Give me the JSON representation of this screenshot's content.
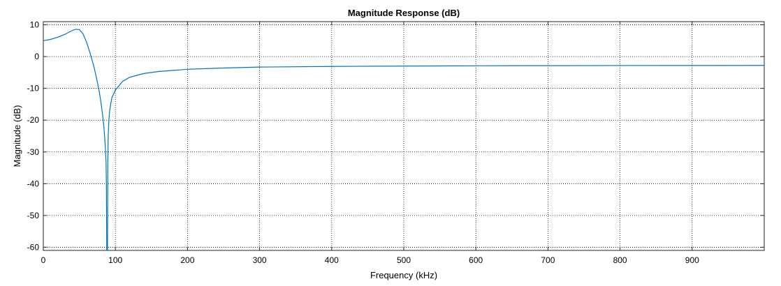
{
  "chart_data": {
    "type": "line",
    "title": "Magnitude Response (dB)",
    "xlabel": "Frequency (kHz)",
    "ylabel": "Magnitude (dB)",
    "xlim": [
      0,
      1000
    ],
    "ylim": [
      -61,
      11
    ],
    "xticks": [
      0,
      100,
      200,
      300,
      400,
      500,
      600,
      700,
      800,
      900
    ],
    "yticks": [
      10,
      0,
      -10,
      -20,
      -30,
      -40,
      -50,
      -60
    ],
    "grid": "dotted",
    "line_color": "#0072bd",
    "series": [
      {
        "x": [
          0,
          10,
          20,
          30,
          40,
          45,
          50,
          55,
          60,
          65,
          70,
          75,
          78,
          80,
          82,
          84,
          85,
          86,
          87,
          87.5,
          88,
          88.5,
          89,
          89.5,
          90,
          91,
          92,
          95,
          100,
          110,
          120,
          140,
          160,
          200,
          250,
          300,
          350,
          400,
          500,
          600,
          700,
          800,
          900,
          1000
        ],
        "values": [
          5.0,
          5.4,
          6.1,
          7.0,
          8.2,
          8.6,
          8.5,
          7.2,
          4.5,
          1.0,
          -3.0,
          -8.0,
          -11.5,
          -14.5,
          -18.0,
          -22.0,
          -25.0,
          -28.5,
          -33.0,
          -40.0,
          -61.0,
          -61.0,
          -61.0,
          -33.0,
          -25.0,
          -20.0,
          -17.0,
          -13.0,
          -10.5,
          -7.8,
          -6.5,
          -5.3,
          -4.7,
          -4.0,
          -3.6,
          -3.3,
          -3.2,
          -3.1,
          -3.0,
          -2.9,
          -2.85,
          -2.82,
          -2.8,
          -2.78
        ]
      }
    ]
  }
}
